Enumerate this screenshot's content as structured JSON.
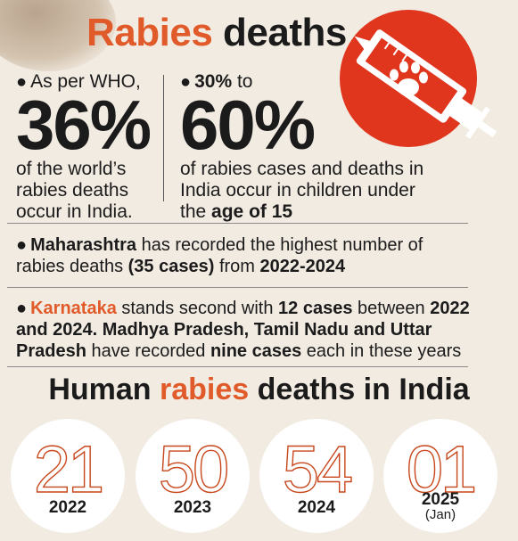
{
  "title": {
    "accent": "Rabies",
    "rest": "deaths"
  },
  "stat_left": {
    "lead": "As per WHO,",
    "value": "36%",
    "description": "of the world’s rabies deaths occur in India."
  },
  "stat_right": {
    "lead_bold": "30%",
    "lead_rest": "to",
    "value": "60%",
    "description": "of rabies cases and deaths in India occur in children under the",
    "description_bold": "age of 15"
  },
  "maharashtra": {
    "bold_state": "Maharashtra",
    "text1": "has recorded the highest number of rabies deaths",
    "bold_cases": "(35 cases)",
    "text2": "from",
    "bold_years": "2022-2024"
  },
  "karnataka": {
    "state": "Karnataka",
    "text1": "stands second with",
    "bold_cases": "12 cases",
    "text2": "between",
    "bold_years": "2022 and 2024. Madhya Pradesh, Tamil Nadu and Uttar Pradesh",
    "text3": "have recorded",
    "bold_nine": "nine cases",
    "text4": "each in these years"
  },
  "section_title": {
    "pre": "Human",
    "accent": "rabies",
    "post": "deaths in India"
  },
  "yearly_deaths": [
    {
      "count": "21",
      "year": "2022",
      "sub": ""
    },
    {
      "count": "50",
      "year": "2023",
      "sub": ""
    },
    {
      "count": "54",
      "year": "2024",
      "sub": ""
    },
    {
      "count": "01",
      "year": "2025",
      "sub": "(Jan)"
    }
  ],
  "colors": {
    "accent": "#e05a2a",
    "icon_red": "#e0361e",
    "background": "#f2ebe2"
  },
  "icons": {
    "syringe": "syringe-with-paw-icon"
  }
}
